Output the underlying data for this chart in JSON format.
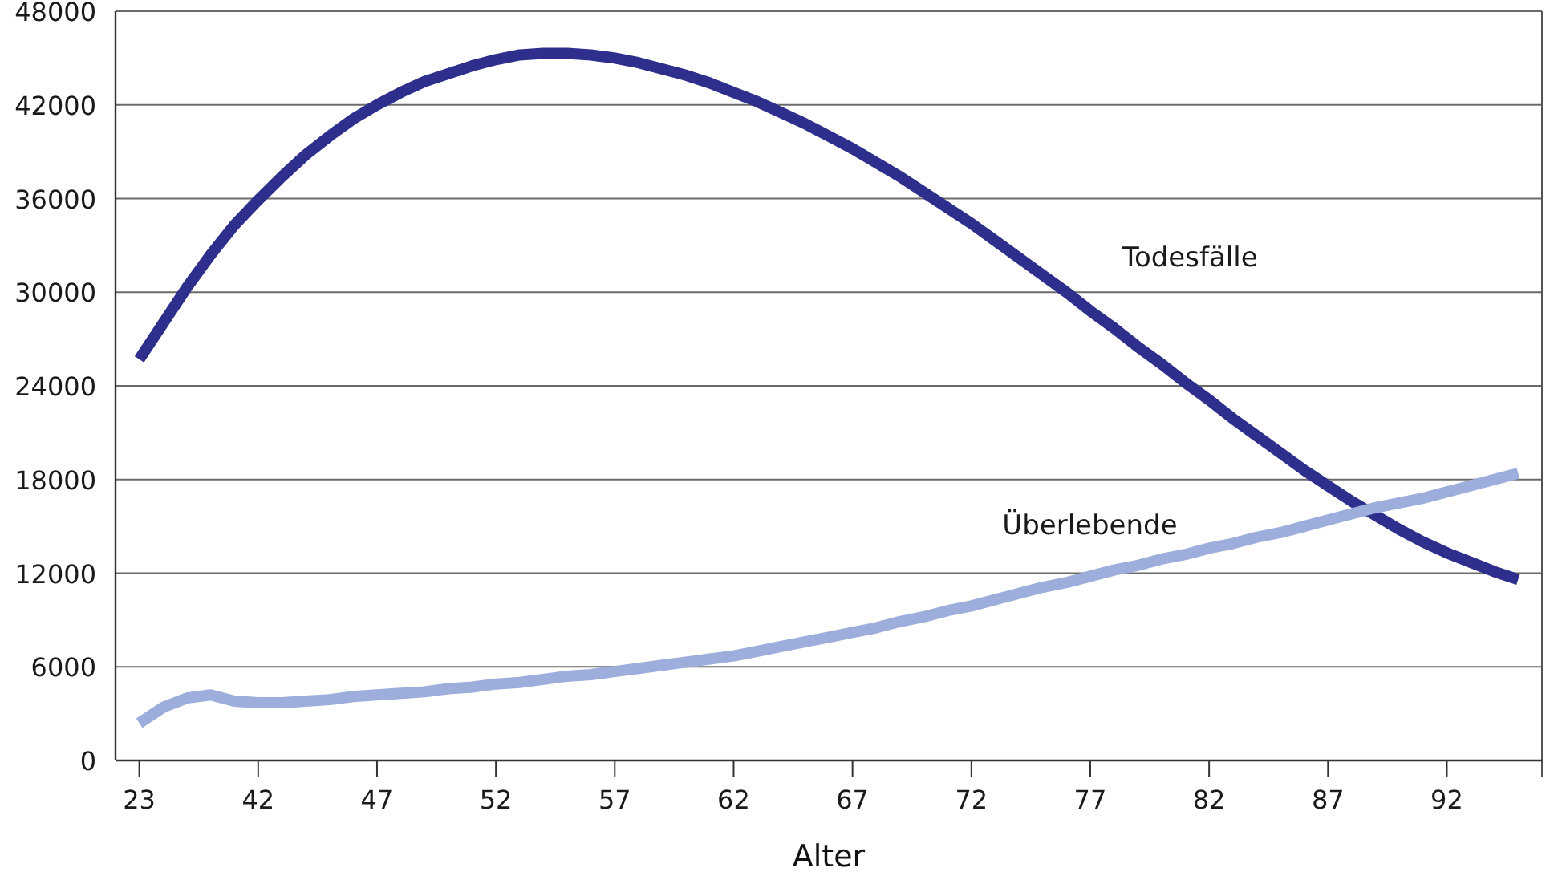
{
  "chart_data": {
    "type": "line",
    "xlabel": "Alter",
    "categories": [
      "23",
      null,
      null,
      null,
      null,
      "42",
      null,
      null,
      null,
      null,
      "47",
      null,
      null,
      null,
      null,
      "52",
      null,
      null,
      null,
      null,
      "57",
      null,
      null,
      null,
      null,
      "62",
      null,
      null,
      null,
      null,
      "67",
      null,
      null,
      null,
      null,
      "72",
      null,
      null,
      null,
      null,
      "77",
      null,
      null,
      null,
      null,
      "82",
      null,
      null,
      null,
      null,
      "87",
      null,
      null,
      null,
      null,
      "92",
      null,
      null,
      null
    ],
    "ylim": [
      0,
      48000
    ],
    "yticks": [
      0,
      6000,
      12000,
      18000,
      24000,
      30000,
      36000,
      42000,
      48000
    ],
    "grid": "y",
    "marker": "none",
    "line_style": "solid",
    "series": [
      {
        "name": "Todesfälle",
        "color": "#2e2f8c",
        "values": [
          25700,
          28000,
          30300,
          32400,
          34300,
          35900,
          37400,
          38800,
          40000,
          41100,
          42000,
          42800,
          43500,
          44000,
          44500,
          44900,
          45200,
          45300,
          45300,
          45200,
          45000,
          44700,
          44300,
          43900,
          43400,
          42800,
          42200,
          41500,
          40800,
          40000,
          39200,
          38300,
          37400,
          36400,
          35400,
          34400,
          33300,
          32200,
          31100,
          30000,
          28800,
          27700,
          26500,
          25400,
          24200,
          23100,
          21900,
          20800,
          19700,
          18600,
          17600,
          16600,
          15700,
          14800,
          14000,
          13300,
          12700,
          12100,
          11600
        ]
      },
      {
        "name": "Überlebende",
        "color": "#9daedc",
        "values": [
          2400,
          3400,
          4000,
          4200,
          3800,
          3700,
          3700,
          3800,
          3900,
          4100,
          4200,
          4300,
          4400,
          4600,
          4700,
          4900,
          5000,
          5200,
          5400,
          5500,
          5700,
          5900,
          6100,
          6300,
          6500,
          6700,
          7000,
          7300,
          7600,
          7900,
          8200,
          8500,
          8900,
          9200,
          9600,
          9900,
          10300,
          10700,
          11100,
          11400,
          11800,
          12200,
          12500,
          12900,
          13200,
          13600,
          13900,
          14300,
          14600,
          15000,
          15400,
          15800,
          16200,
          16500,
          16800,
          17200,
          17600,
          18000,
          18400
        ]
      }
    ]
  }
}
